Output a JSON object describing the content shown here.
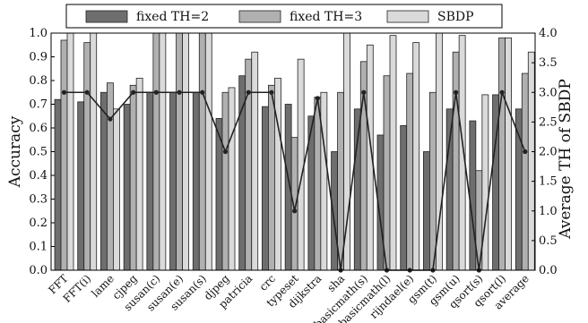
{
  "chart_data": {
    "type": "bar",
    "categories": [
      "FFT",
      "FFT(i)",
      "lame",
      "cjpeg",
      "susan(c)",
      "susan(e)",
      "susan(s)",
      "djpeg",
      "patricia",
      "crc",
      "typeset",
      "dijkstra",
      "sha",
      "basicmath(s)",
      "basicmath(l)",
      "rijndael(e)",
      "gsm(t)",
      "gsm(u)",
      "qsort(s)",
      "qsort(l)",
      "average"
    ],
    "series": [
      {
        "name": "fixed TH=2",
        "axis": "left",
        "color": "#6e6e6e",
        "values": [
          0.72,
          0.71,
          0.75,
          0.7,
          0.75,
          0.75,
          0.75,
          0.64,
          0.82,
          0.69,
          0.7,
          0.65,
          0.5,
          0.68,
          0.57,
          0.61,
          0.5,
          0.68,
          0.63,
          0.74,
          0.68
        ]
      },
      {
        "name": "fixed TH=3",
        "axis": "left",
        "color": "#b0b0b0",
        "values": [
          0.97,
          0.96,
          0.79,
          0.78,
          1.0,
          1.0,
          1.0,
          0.75,
          0.89,
          0.78,
          0.56,
          0.73,
          0.75,
          0.88,
          0.82,
          0.83,
          0.75,
          0.92,
          0.42,
          0.98,
          0.83
        ]
      },
      {
        "name": "SBDP",
        "axis": "left",
        "color": "#dadada",
        "values": [
          1.0,
          1.0,
          0.68,
          0.81,
          1.0,
          1.0,
          1.0,
          0.77,
          0.92,
          0.81,
          0.89,
          0.75,
          1.0,
          0.95,
          0.99,
          0.96,
          1.0,
          0.99,
          0.74,
          0.98,
          0.92
        ]
      },
      {
        "name": "Average TH of SBDP",
        "axis": "right",
        "type": "line",
        "color": "#222222",
        "values": [
          3.0,
          3.0,
          2.55,
          3.0,
          3.0,
          3.0,
          3.0,
          2.0,
          3.0,
          3.0,
          1.0,
          2.9,
          0.0,
          3.0,
          0.0,
          0.0,
          0.0,
          3.0,
          0.0,
          3.0,
          2.0
        ]
      }
    ],
    "ylabel": "Accuracy",
    "y2label": "Average TH of SBDP",
    "ylim": [
      0,
      1.0
    ],
    "y2lim": [
      0,
      4.0
    ],
    "yticks": [
      "0.0",
      "0.1",
      "0.2",
      "0.3",
      "0.4",
      "0.5",
      "0.6",
      "0.7",
      "0.8",
      "0.9",
      "1.0"
    ],
    "y2ticks": [
      "0.0",
      "0.5",
      "1.0",
      "1.5",
      "2.0",
      "2.5",
      "3.0",
      "3.5",
      "4.0"
    ],
    "legend": {
      "placement": "top",
      "entries": [
        "fixed TH=2",
        "fixed TH=3",
        "SBDP"
      ]
    },
    "grid": false
  }
}
